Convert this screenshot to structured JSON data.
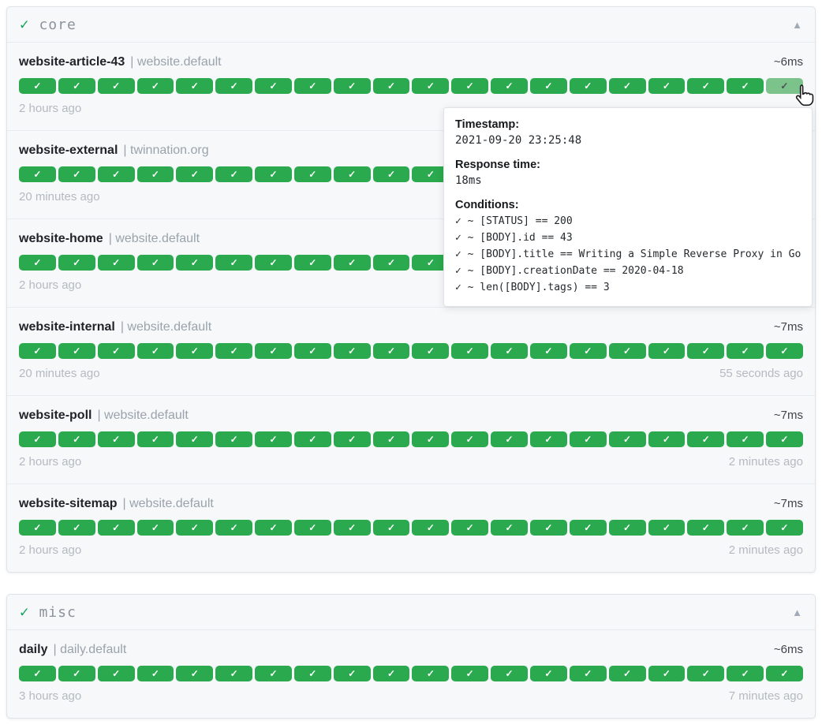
{
  "icons": {
    "group_check": "✓",
    "collapse_up": "▲",
    "badge_check": "✓"
  },
  "colors": {
    "badge_green": "#2ba94e",
    "badge_hover_green": "#7bc28b",
    "group_check_green": "#13a457",
    "card_bg": "#f6f8fa",
    "muted_text": "#b4bac1"
  },
  "separator": "| ",
  "groups": [
    {
      "title": "core",
      "endpoints": [
        {
          "name": "website-article-43",
          "suffix": "website.default",
          "response": "~6ms",
          "left_time": "2 hours ago",
          "right_time": "",
          "badges": 20,
          "last_hovered": true
        },
        {
          "name": "website-external",
          "suffix": "twinnation.org",
          "response": "",
          "left_time": "20 minutes ago",
          "right_time": "",
          "badges": 20,
          "last_hovered": false
        },
        {
          "name": "website-home",
          "suffix": "website.default",
          "response": "",
          "left_time": "2 hours ago",
          "right_time": "",
          "badges": 20,
          "last_hovered": false
        },
        {
          "name": "website-internal",
          "suffix": "website.default",
          "response": "~7ms",
          "left_time": "20 minutes ago",
          "right_time": "55 seconds ago",
          "badges": 20,
          "last_hovered": false
        },
        {
          "name": "website-poll",
          "suffix": "website.default",
          "response": "~7ms",
          "left_time": "2 hours ago",
          "right_time": "2 minutes ago",
          "badges": 20,
          "last_hovered": false
        },
        {
          "name": "website-sitemap",
          "suffix": "website.default",
          "response": "~7ms",
          "left_time": "2 hours ago",
          "right_time": "2 minutes ago",
          "badges": 20,
          "last_hovered": false
        }
      ]
    },
    {
      "title": "misc",
      "endpoints": [
        {
          "name": "daily",
          "suffix": "daily.default",
          "response": "~6ms",
          "left_time": "3 hours ago",
          "right_time": "7 minutes ago",
          "badges": 20,
          "last_hovered": false
        }
      ]
    }
  ],
  "tooltip": {
    "timestamp_label": "Timestamp:",
    "timestamp_value": "2021-09-20 23:25:48",
    "response_label": "Response time:",
    "response_value": "18ms",
    "conditions_label": "Conditions:",
    "conditions": [
      "✓ ~ [STATUS] == 200",
      "✓ ~ [BODY].id == 43",
      "✓ ~ [BODY].title == Writing a Simple Reverse Proxy in Go",
      "✓ ~ [BODY].creationDate == 2020-04-18",
      "✓ ~ len([BODY].tags) == 3"
    ]
  }
}
